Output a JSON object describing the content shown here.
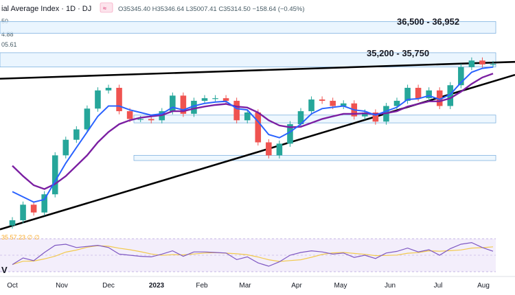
{
  "header": {
    "title": "ial Average Index · 1D · DJ",
    "quote": "O35345.40 H35346.64 L35007.41 C35314.50 −158.64 (−0.45%)",
    "price_stub_1": "50",
    "price_stub_2": "4.88",
    "price_stub_3": "05.61"
  },
  "annotations": {
    "upper_zone": "36,500 - 36,952",
    "lower_zone": "35,200 - 35,750"
  },
  "rsi_panel": {
    "legend": "35  57.23  ∅  ∅",
    "corner_label": "V"
  },
  "x_axis": {
    "labels": [
      "Oct",
      "Nov",
      "Dec",
      "2023",
      "Feb",
      "Mar",
      "Apr",
      "May",
      "Jun",
      "Jul",
      "Aug"
    ]
  },
  "colors": {
    "up_candle": "#26a69a",
    "down_candle": "#ef5350",
    "ema_fast": "#2962ff",
    "ema_slow": "#7b1fa2",
    "rsi_line": "#7e57c2",
    "rsi_signal": "#f2c94c",
    "zone_fill": "#e3f2fd",
    "zone_border": "#6fa8dc"
  },
  "chart_data": {
    "type": "candlestick",
    "title": "ial Average Index · 1D · DJ",
    "x": [
      "Sep 26",
      "Oct 3",
      "Oct 10",
      "Oct 17",
      "Oct 24",
      "Oct 31",
      "Nov 7",
      "Nov 14",
      "Nov 21",
      "Nov 28",
      "Dec 5",
      "Dec 12",
      "Dec 19",
      "Dec 27",
      "Jan 3",
      "Jan 9",
      "Jan 17",
      "Jan 23",
      "Jan 30",
      "Feb 6",
      "Feb 13",
      "Feb 21",
      "Feb 27",
      "Mar 6",
      "Mar 13",
      "Mar 20",
      "Mar 27",
      "Apr 3",
      "Apr 10",
      "Apr 17",
      "Apr 24",
      "May 1",
      "May 8",
      "May 15",
      "May 22",
      "May 30",
      "Jun 5",
      "Jun 12",
      "Jun 20",
      "Jun 26",
      "Jul 3",
      "Jul 10",
      "Jul 17",
      "Jul 24",
      "Jul 31",
      "Aug 7"
    ],
    "close": [
      29300,
      29900,
      29600,
      30300,
      31800,
      32400,
      32800,
      33600,
      34300,
      34400,
      33500,
      33200,
      33200,
      33150,
      33500,
      34100,
      33400,
      33900,
      34000,
      34000,
      33900,
      33150,
      33450,
      32300,
      31800,
      32250,
      33000,
      33500,
      33950,
      33900,
      33700,
      33800,
      33300,
      33450,
      33100,
      33700,
      33900,
      34400,
      34000,
      34300,
      33700,
      34500,
      35200,
      35450,
      35300,
      35314.5
    ],
    "ema_fast": [
      30400,
      30200,
      30000,
      30100,
      30800,
      31500,
      32100,
      32700,
      33300,
      33700,
      33700,
      33550,
      33450,
      33350,
      33400,
      33650,
      33550,
      33700,
      33800,
      33850,
      33880,
      33600,
      33550,
      33100,
      32600,
      32480,
      32700,
      33000,
      33400,
      33600,
      33650,
      33700,
      33550,
      33500,
      33350,
      33500,
      33650,
      33950,
      33980,
      34100,
      33950,
      34150,
      34600,
      35000,
      35150,
      35200
    ],
    "ema_slow": [
      31400,
      31000,
      30650,
      30500,
      30700,
      31000,
      31400,
      31800,
      32300,
      32700,
      33000,
      33150,
      33250,
      33300,
      33350,
      33500,
      33500,
      33600,
      33680,
      33740,
      33780,
      33680,
      33640,
      33450,
      33150,
      32950,
      32880,
      32900,
      33050,
      33200,
      33300,
      33400,
      33400,
      33420,
      33380,
      33420,
      33500,
      33680,
      33780,
      33880,
      33880,
      34000,
      34250,
      34550,
      34800,
      34950
    ],
    "rsi": [
      33,
      45,
      40,
      55,
      68,
      70,
      64,
      66,
      68,
      64,
      52,
      50,
      48,
      47,
      52,
      58,
      48,
      56,
      56,
      55,
      54,
      42,
      47,
      36,
      30,
      38,
      50,
      55,
      58,
      56,
      52,
      54,
      46,
      50,
      44,
      54,
      57,
      63,
      56,
      60,
      50,
      62,
      70,
      73,
      64,
      57.23
    ],
    "zones": [
      {
        "label": "36,500 - 36,952",
        "from": 36500,
        "to": 36952
      },
      {
        "label": "35,200 - 35,750",
        "from": 35200,
        "to": 35750
      }
    ],
    "y_range": [
      28800,
      37200
    ],
    "rsi_range": [
      20,
      80
    ],
    "grid": false
  }
}
